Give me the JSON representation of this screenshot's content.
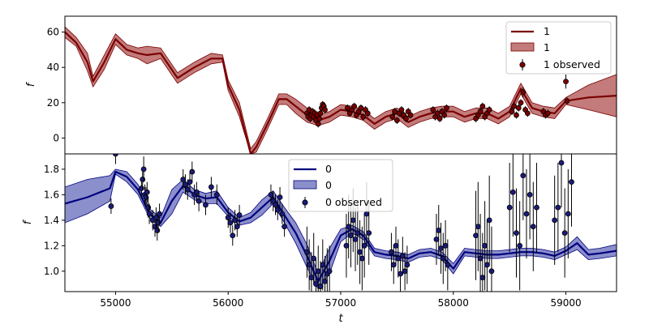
{
  "chart_data": [
    {
      "type": "line",
      "panel": "top",
      "ylabel": "f",
      "xlim": [
        54550,
        59450
      ],
      "ylim": [
        -9,
        69
      ],
      "yticks": [
        0,
        20,
        40,
        60
      ],
      "colors": {
        "line": "#7a0000",
        "band": "#a94343",
        "point": "#7a0000"
      },
      "series": [
        {
          "name": "1",
          "kind": "model",
          "x": [
            54550,
            54650,
            54750,
            54800,
            54900,
            55000,
            55100,
            55200,
            55280,
            55400,
            55550,
            55700,
            55850,
            55950,
            56000,
            56100,
            56200,
            56250,
            56350,
            56450,
            56520,
            56600,
            56700,
            56800,
            56900,
            57000,
            57100,
            57200,
            57300,
            57400,
            57500,
            57600,
            57700,
            57800,
            57900,
            58000,
            58100,
            58200,
            58300,
            58400,
            58500,
            58600,
            58700,
            58800,
            58900,
            59000,
            59200,
            59450
          ],
          "values": [
            60,
            54,
            43,
            32,
            43,
            56,
            50,
            48,
            47,
            48,
            34,
            40,
            45,
            45,
            30,
            16,
            -9,
            -5,
            8,
            22,
            22,
            18,
            13,
            10,
            12,
            16,
            15,
            13,
            8,
            12,
            14,
            9,
            12,
            14,
            15,
            15,
            12,
            14,
            14,
            11,
            15,
            28,
            17,
            15,
            14,
            21,
            23,
            24
          ],
          "band_low": [
            57,
            52,
            38,
            29,
            39,
            53,
            47,
            45,
            42,
            45,
            31,
            37,
            42,
            43,
            27,
            12,
            -9,
            -8,
            5,
            19,
            19,
            14,
            9,
            7,
            9,
            13,
            12,
            10,
            5,
            9,
            11,
            6,
            9,
            11,
            12,
            12,
            9,
            11,
            11,
            8,
            12,
            25,
            14,
            12,
            11,
            19,
            16,
            12
          ],
          "band_high": [
            63,
            57,
            48,
            35,
            47,
            59,
            53,
            51,
            52,
            51,
            37,
            43,
            48,
            47,
            33,
            20,
            -6,
            -2,
            11,
            25,
            25,
            22,
            17,
            13,
            15,
            19,
            18,
            16,
            11,
            15,
            17,
            12,
            15,
            17,
            18,
            18,
            15,
            17,
            17,
            14,
            18,
            31,
            20,
            18,
            17,
            23,
            30,
            36
          ]
        },
        {
          "name": "1 observed",
          "kind": "observed",
          "x": [
            56700,
            56710,
            56720,
            56730,
            56740,
            56750,
            56760,
            56770,
            56780,
            56790,
            56800,
            56810,
            56820,
            56830,
            56840,
            56850,
            56860,
            57060,
            57080,
            57100,
            57120,
            57140,
            57160,
            57180,
            57200,
            57220,
            57240,
            57460,
            57480,
            57500,
            57520,
            57540,
            57560,
            57580,
            57600,
            57620,
            57820,
            57840,
            57860,
            57880,
            57900,
            57920,
            57940,
            58200,
            58220,
            58240,
            58260,
            58280,
            58300,
            58320,
            58520,
            58540,
            58560,
            58580,
            58600,
            58620,
            58640,
            58660,
            58800,
            58820,
            58840,
            59000,
            59010
          ],
          "values": [
            14,
            12,
            16,
            11,
            13,
            15,
            12,
            14,
            10,
            13,
            8,
            11,
            14,
            17,
            19,
            18,
            16,
            17,
            14,
            16,
            18,
            13,
            15,
            17,
            12,
            16,
            14,
            12,
            15,
            10,
            14,
            16,
            13,
            11,
            15,
            13,
            16,
            12,
            14,
            11,
            15,
            13,
            17,
            11,
            13,
            15,
            18,
            12,
            14,
            16,
            15,
            18,
            13,
            17,
            20,
            26,
            16,
            14,
            15,
            13,
            14,
            32,
            21
          ],
          "errors": [
            2,
            2,
            2,
            2,
            2,
            2,
            2,
            2,
            2,
            2,
            2,
            2,
            2,
            2,
            2,
            2,
            2,
            2,
            2,
            2,
            2,
            2,
            2,
            2,
            2,
            2,
            2,
            2,
            2,
            2,
            2,
            2,
            2,
            2,
            2,
            2,
            2,
            2,
            2,
            2,
            2,
            2,
            2,
            2,
            2,
            2,
            2,
            2,
            2,
            2,
            2,
            2,
            2,
            2,
            2,
            3,
            2,
            2,
            2,
            2,
            2,
            4,
            2
          ]
        }
      ],
      "legend": {
        "position": "upper right",
        "entries": [
          "1",
          "1",
          "1 observed"
        ]
      }
    },
    {
      "type": "line",
      "panel": "bottom",
      "xlabel": "t",
      "ylabel": "f",
      "xlim": [
        54550,
        59450
      ],
      "ylim": [
        0.84,
        1.92
      ],
      "yticks": [
        1.0,
        1.2,
        1.4,
        1.6,
        1.8
      ],
      "xticks": [
        55000,
        56000,
        57000,
        58000,
        59000
      ],
      "colors": {
        "line": "#00007f",
        "band": "#5a5fb5",
        "point": "#1a1a7a"
      },
      "series": [
        {
          "name": "0",
          "kind": "model",
          "x": [
            54550,
            54750,
            54950,
            55000,
            55100,
            55200,
            55300,
            55400,
            55500,
            55600,
            55700,
            55800,
            55900,
            56000,
            56100,
            56200,
            56300,
            56400,
            56500,
            56600,
            56700,
            56800,
            56900,
            57000,
            57100,
            57200,
            57300,
            57400,
            57500,
            57600,
            57700,
            57800,
            57900,
            58000,
            58100,
            58200,
            58300,
            58400,
            58500,
            58600,
            58700,
            58800,
            58900,
            59000,
            59100,
            59200,
            59300,
            59450
          ],
          "values": [
            1.53,
            1.58,
            1.65,
            1.78,
            1.74,
            1.64,
            1.45,
            1.38,
            1.55,
            1.67,
            1.6,
            1.57,
            1.58,
            1.46,
            1.39,
            1.42,
            1.5,
            1.58,
            1.44,
            1.3,
            1.12,
            0.92,
            1.08,
            1.28,
            1.33,
            1.28,
            1.15,
            1.13,
            1.12,
            1.1,
            1.14,
            1.15,
            1.12,
            1.02,
            1.15,
            1.14,
            1.13,
            1.13,
            1.14,
            1.15,
            1.15,
            1.14,
            1.12,
            1.16,
            1.22,
            1.13,
            1.14,
            1.16
          ],
          "band_low": [
            1.38,
            1.45,
            1.55,
            1.76,
            1.7,
            1.6,
            1.42,
            1.35,
            1.45,
            1.62,
            1.56,
            1.53,
            1.53,
            1.43,
            1.36,
            1.38,
            1.44,
            1.53,
            1.38,
            1.22,
            1.03,
            0.86,
            0.98,
            1.23,
            1.3,
            1.25,
            1.12,
            1.1,
            1.09,
            1.07,
            1.11,
            1.12,
            1.09,
            0.98,
            1.12,
            1.11,
            1.1,
            1.1,
            1.11,
            1.12,
            1.12,
            1.11,
            1.09,
            1.13,
            1.17,
            1.09,
            1.1,
            1.12
          ],
          "band_high": [
            1.66,
            1.72,
            1.75,
            1.8,
            1.78,
            1.68,
            1.49,
            1.42,
            1.64,
            1.72,
            1.64,
            1.61,
            1.63,
            1.5,
            1.42,
            1.46,
            1.56,
            1.63,
            1.5,
            1.38,
            1.21,
            0.98,
            1.18,
            1.33,
            1.36,
            1.31,
            1.18,
            1.16,
            1.15,
            1.13,
            1.17,
            1.18,
            1.15,
            1.06,
            1.18,
            1.17,
            1.16,
            1.16,
            1.17,
            1.18,
            1.18,
            1.17,
            1.15,
            1.19,
            1.27,
            1.17,
            1.18,
            1.21
          ]
        },
        {
          "name": "0 observed",
          "kind": "observed",
          "x": [
            54960,
            55000,
            55230,
            55240,
            55250,
            55260,
            55270,
            55280,
            55290,
            55300,
            55330,
            55350,
            55360,
            55370,
            55380,
            55390,
            55600,
            55620,
            55640,
            55660,
            55680,
            55700,
            55720,
            55740,
            55800,
            55850,
            55900,
            56000,
            56020,
            56040,
            56060,
            56080,
            56100,
            56380,
            56400,
            56420,
            56440,
            56460,
            56480,
            56500,
            56700,
            56720,
            56740,
            56760,
            56780,
            56800,
            56820,
            56840,
            56860,
            56880,
            56900,
            57050,
            57070,
            57090,
            57110,
            57130,
            57150,
            57170,
            57190,
            57210,
            57230,
            57250,
            57450,
            57470,
            57490,
            57510,
            57530,
            57550,
            57570,
            57590,
            57850,
            57870,
            57890,
            57910,
            57930,
            57950,
            58200,
            58220,
            58240,
            58260,
            58280,
            58300,
            58320,
            58340,
            58500,
            58530,
            58560,
            58590,
            58620,
            58650,
            58680,
            58710,
            58740,
            58900,
            58930,
            58960,
            58990,
            59020,
            59050
          ],
          "values": [
            1.51,
            1.92,
            1.65,
            1.72,
            1.8,
            1.6,
            1.58,
            1.62,
            1.5,
            1.45,
            1.4,
            1.35,
            1.42,
            1.32,
            1.38,
            1.45,
            1.72,
            1.68,
            1.64,
            1.7,
            1.78,
            1.6,
            1.62,
            1.55,
            1.52,
            1.66,
            1.6,
            1.42,
            1.38,
            1.28,
            1.4,
            1.35,
            1.44,
            1.6,
            1.55,
            1.52,
            1.48,
            1.58,
            1.45,
            1.35,
            1.15,
            1.05,
            0.95,
            1.1,
            0.9,
            1.0,
            0.88,
            1.05,
            0.92,
            0.98,
            1.0,
            1.2,
            1.35,
            1.28,
            1.4,
            1.25,
            1.3,
            1.15,
            1.1,
            1.2,
            1.45,
            1.3,
            1.15,
            1.05,
            1.2,
            1.1,
            0.98,
            1.12,
            1.0,
            1.05,
            1.25,
            1.32,
            1.18,
            1.1,
            1.2,
            1.05,
            1.28,
            1.35,
            1.1,
            0.95,
            1.2,
            1.05,
            1.4,
            1.0,
            1.5,
            1.62,
            1.3,
            1.2,
            1.75,
            1.45,
            1.6,
            1.35,
            1.5,
            1.4,
            1.5,
            1.85,
            1.3,
            1.45,
            1.7
          ],
          "errors": [
            0.06,
            0.08,
            0.08,
            0.08,
            0.1,
            0.08,
            0.08,
            0.08,
            0.08,
            0.08,
            0.08,
            0.08,
            0.08,
            0.08,
            0.08,
            0.08,
            0.08,
            0.08,
            0.08,
            0.08,
            0.08,
            0.08,
            0.08,
            0.08,
            0.08,
            0.08,
            0.08,
            0.08,
            0.08,
            0.08,
            0.08,
            0.08,
            0.08,
            0.08,
            0.08,
            0.08,
            0.08,
            0.08,
            0.08,
            0.08,
            0.2,
            0.2,
            0.2,
            0.2,
            0.2,
            0.2,
            0.2,
            0.2,
            0.2,
            0.2,
            0.2,
            0.25,
            0.25,
            0.25,
            0.25,
            0.25,
            0.25,
            0.25,
            0.25,
            0.25,
            0.25,
            0.25,
            0.15,
            0.15,
            0.15,
            0.15,
            0.15,
            0.15,
            0.15,
            0.15,
            0.2,
            0.2,
            0.2,
            0.2,
            0.2,
            0.2,
            0.35,
            0.35,
            0.35,
            0.35,
            0.35,
            0.35,
            0.35,
            0.35,
            0.35,
            0.35,
            0.35,
            0.35,
            0.35,
            0.35,
            0.35,
            0.35,
            0.35,
            0.35,
            0.35,
            0.35,
            0.35,
            0.35,
            0.35
          ]
        }
      ],
      "legend": {
        "position": "upper center",
        "entries": [
          "0",
          "0",
          "0 observed"
        ]
      }
    }
  ]
}
